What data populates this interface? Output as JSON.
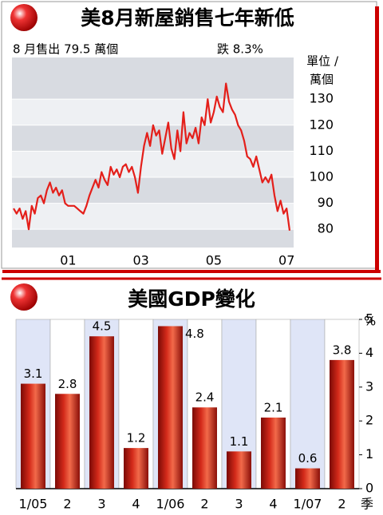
{
  "chart_data": [
    {
      "type": "line",
      "title": "美8月新屋銷售七年新低",
      "annotations": [
        "8 月售出 79.5 萬個",
        "跌 8.3%"
      ],
      "y_label_lines": [
        "單位 /",
        "萬個"
      ],
      "color": "#e41f1a",
      "categories": [
        null,
        null,
        null,
        null,
        null,
        null,
        null,
        null,
        null,
        null,
        null,
        null,
        null,
        null,
        null,
        null,
        null,
        null,
        "01",
        null,
        null,
        null,
        null,
        null,
        null,
        null,
        null,
        null,
        null,
        null,
        null,
        null,
        null,
        null,
        null,
        null,
        null,
        null,
        null,
        null,
        null,
        null,
        "03",
        null,
        null,
        null,
        null,
        null,
        null,
        null,
        null,
        null,
        null,
        null,
        null,
        null,
        null,
        null,
        null,
        null,
        null,
        null,
        null,
        null,
        null,
        null,
        "05",
        null,
        null,
        null,
        null,
        null,
        null,
        null,
        null,
        null,
        null,
        null,
        null,
        null,
        null,
        null,
        null,
        null,
        null,
        null,
        null,
        null,
        null,
        null,
        "07",
        null
      ],
      "values": [
        88,
        86,
        88,
        84,
        87,
        80,
        89,
        86,
        92,
        93,
        90,
        95,
        98,
        94,
        96,
        93,
        95,
        90,
        89,
        89,
        89,
        88,
        87,
        86,
        89,
        93,
        96,
        99,
        96,
        102,
        99,
        97,
        104,
        101,
        103,
        100,
        104,
        105,
        102,
        104,
        100,
        94,
        104,
        112,
        117,
        112,
        120,
        116,
        118,
        109,
        115,
        121,
        111,
        107,
        118,
        110,
        125,
        113,
        117,
        115,
        119,
        113,
        123,
        120,
        130,
        121,
        125,
        131,
        127,
        125,
        136,
        129,
        126,
        124,
        120,
        118,
        114,
        108,
        107,
        104,
        108,
        103,
        98,
        100,
        98,
        101,
        93,
        87,
        91,
        86,
        88,
        79.5
      ],
      "ylim": [
        73,
        146
      ],
      "yticks": [
        80,
        90,
        100,
        110,
        120,
        130
      ]
    },
    {
      "type": "bar",
      "title": "美國GDP變化",
      "y_label": "%",
      "x_label": "季",
      "color": "#d42a1a",
      "categories": [
        "1/05",
        "2",
        "3",
        "4",
        "1/06",
        "2",
        "3",
        "4",
        "1/07",
        "2"
      ],
      "values": [
        3.1,
        2.8,
        4.5,
        1.2,
        4.8,
        2.4,
        1.1,
        2.1,
        0.6,
        3.8
      ],
      "ylim": [
        0,
        5
      ],
      "yticks": [
        0,
        1,
        2,
        3,
        4,
        5
      ]
    }
  ]
}
